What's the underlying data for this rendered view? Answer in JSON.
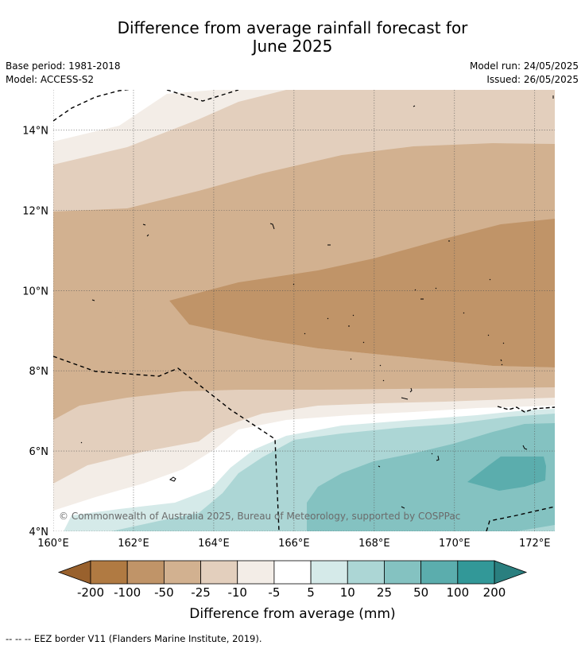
{
  "title": {
    "line1": "Difference from average rainfall forecast for",
    "line2": "June 2025"
  },
  "meta": {
    "base_period": "Base period: 1981-2018",
    "model": "Model: ACCESS-S2",
    "model_run": "Model run: 24/05/2025",
    "issued": "Issued: 26/05/2025"
  },
  "map": {
    "lon_labels": [
      "160°E",
      "162°E",
      "164°E",
      "166°E",
      "168°E",
      "170°E",
      "172°E"
    ],
    "lat_labels": [
      "4°N",
      "6°N",
      "8°N",
      "10°N",
      "12°N",
      "14°N"
    ],
    "lon_range": [
      160,
      172.5
    ],
    "lat_range": [
      4,
      15
    ],
    "copyright": "© Commonwealth of Australia 2025, Bureau of Meteorology, supported by COSPPac"
  },
  "colorbar": {
    "title": "Difference from average (mm)",
    "labels": [
      "-200",
      "-100",
      "-50",
      "-25",
      "-10",
      "-5",
      "5",
      "10",
      "25",
      "50",
      "100",
      "200"
    ],
    "colors": {
      "lt-200": "#99612d",
      "-200to-100": "#b07a42",
      "-100to-50": "#c09468",
      "-50to-25": "#d2b190",
      "-25to-10": "#e3cfbd",
      "-10to-5": "#f3ede7",
      "-5to5": "#ffffff",
      "5to10": "#d5eae9",
      "10to25": "#acd6d5",
      "25to50": "#84c2c1",
      "50to100": "#5badad",
      "100to200": "#329898",
      "gt200": "#2a7f7f"
    }
  },
  "footnote": "--  --  -- EEZ border V11 (Flanders Marine Institute, 2019)."
}
